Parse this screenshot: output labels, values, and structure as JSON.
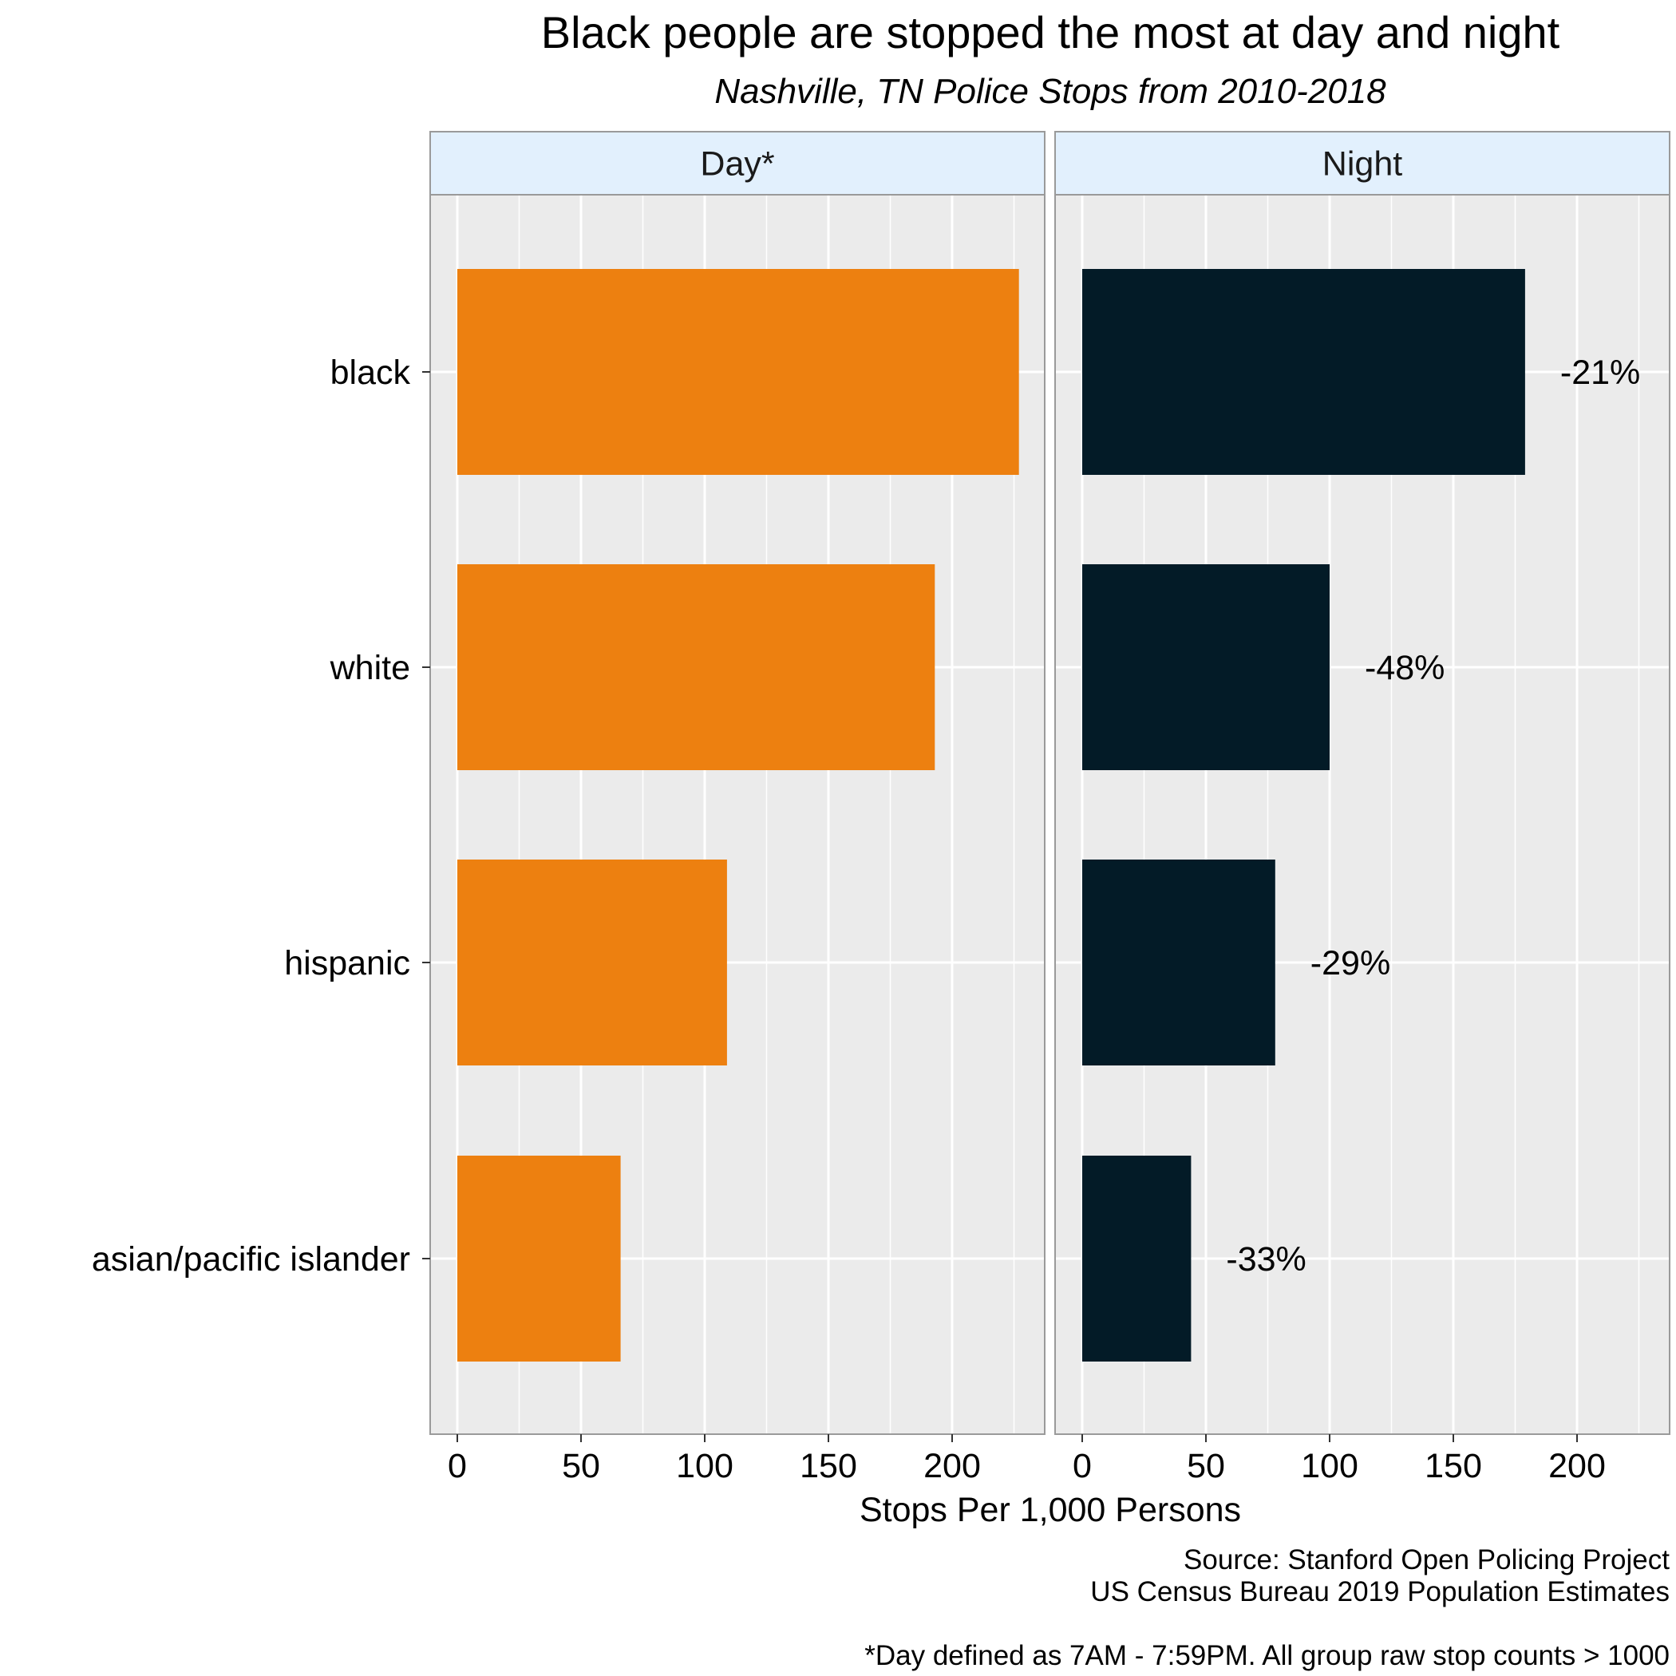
{
  "title": "Black people are stopped the most at day and night",
  "subtitle": "Nashville, TN Police Stops from 2010-2018",
  "colors": {
    "day_bar": "#ED8010",
    "night_bar": "#031B27",
    "panel_bg": "#EBEBEB",
    "strip_bg": "#E2F0FD",
    "grid": "#FFFFFF"
  },
  "chart_data": {
    "type": "bar",
    "orientation": "horizontal",
    "categories": [
      "black",
      "white",
      "hispanic",
      "asian/pacific islander"
    ],
    "facets": [
      {
        "name": "Day*",
        "values": [
          227,
          193,
          109,
          66
        ],
        "labels": [
          "",
          "",
          "",
          ""
        ]
      },
      {
        "name": "Night",
        "values": [
          179,
          100,
          78,
          44
        ],
        "labels": [
          "-21%",
          "-48%",
          "-29%",
          "-33%"
        ]
      }
    ],
    "xlabel": "Stops Per 1,000 Persons",
    "xticks": [
      "0",
      "50",
      "100",
      "150",
      "200"
    ],
    "xlim": [
      -11,
      238
    ],
    "grid": true,
    "legend": "none"
  },
  "caption": {
    "line1": "Source: Stanford Open Policing Project",
    "line2": "US Census Bureau 2019 Population Estimates",
    "line3": "*Day defined as 7AM - 7:59PM. All group raw stop counts > 1000"
  }
}
